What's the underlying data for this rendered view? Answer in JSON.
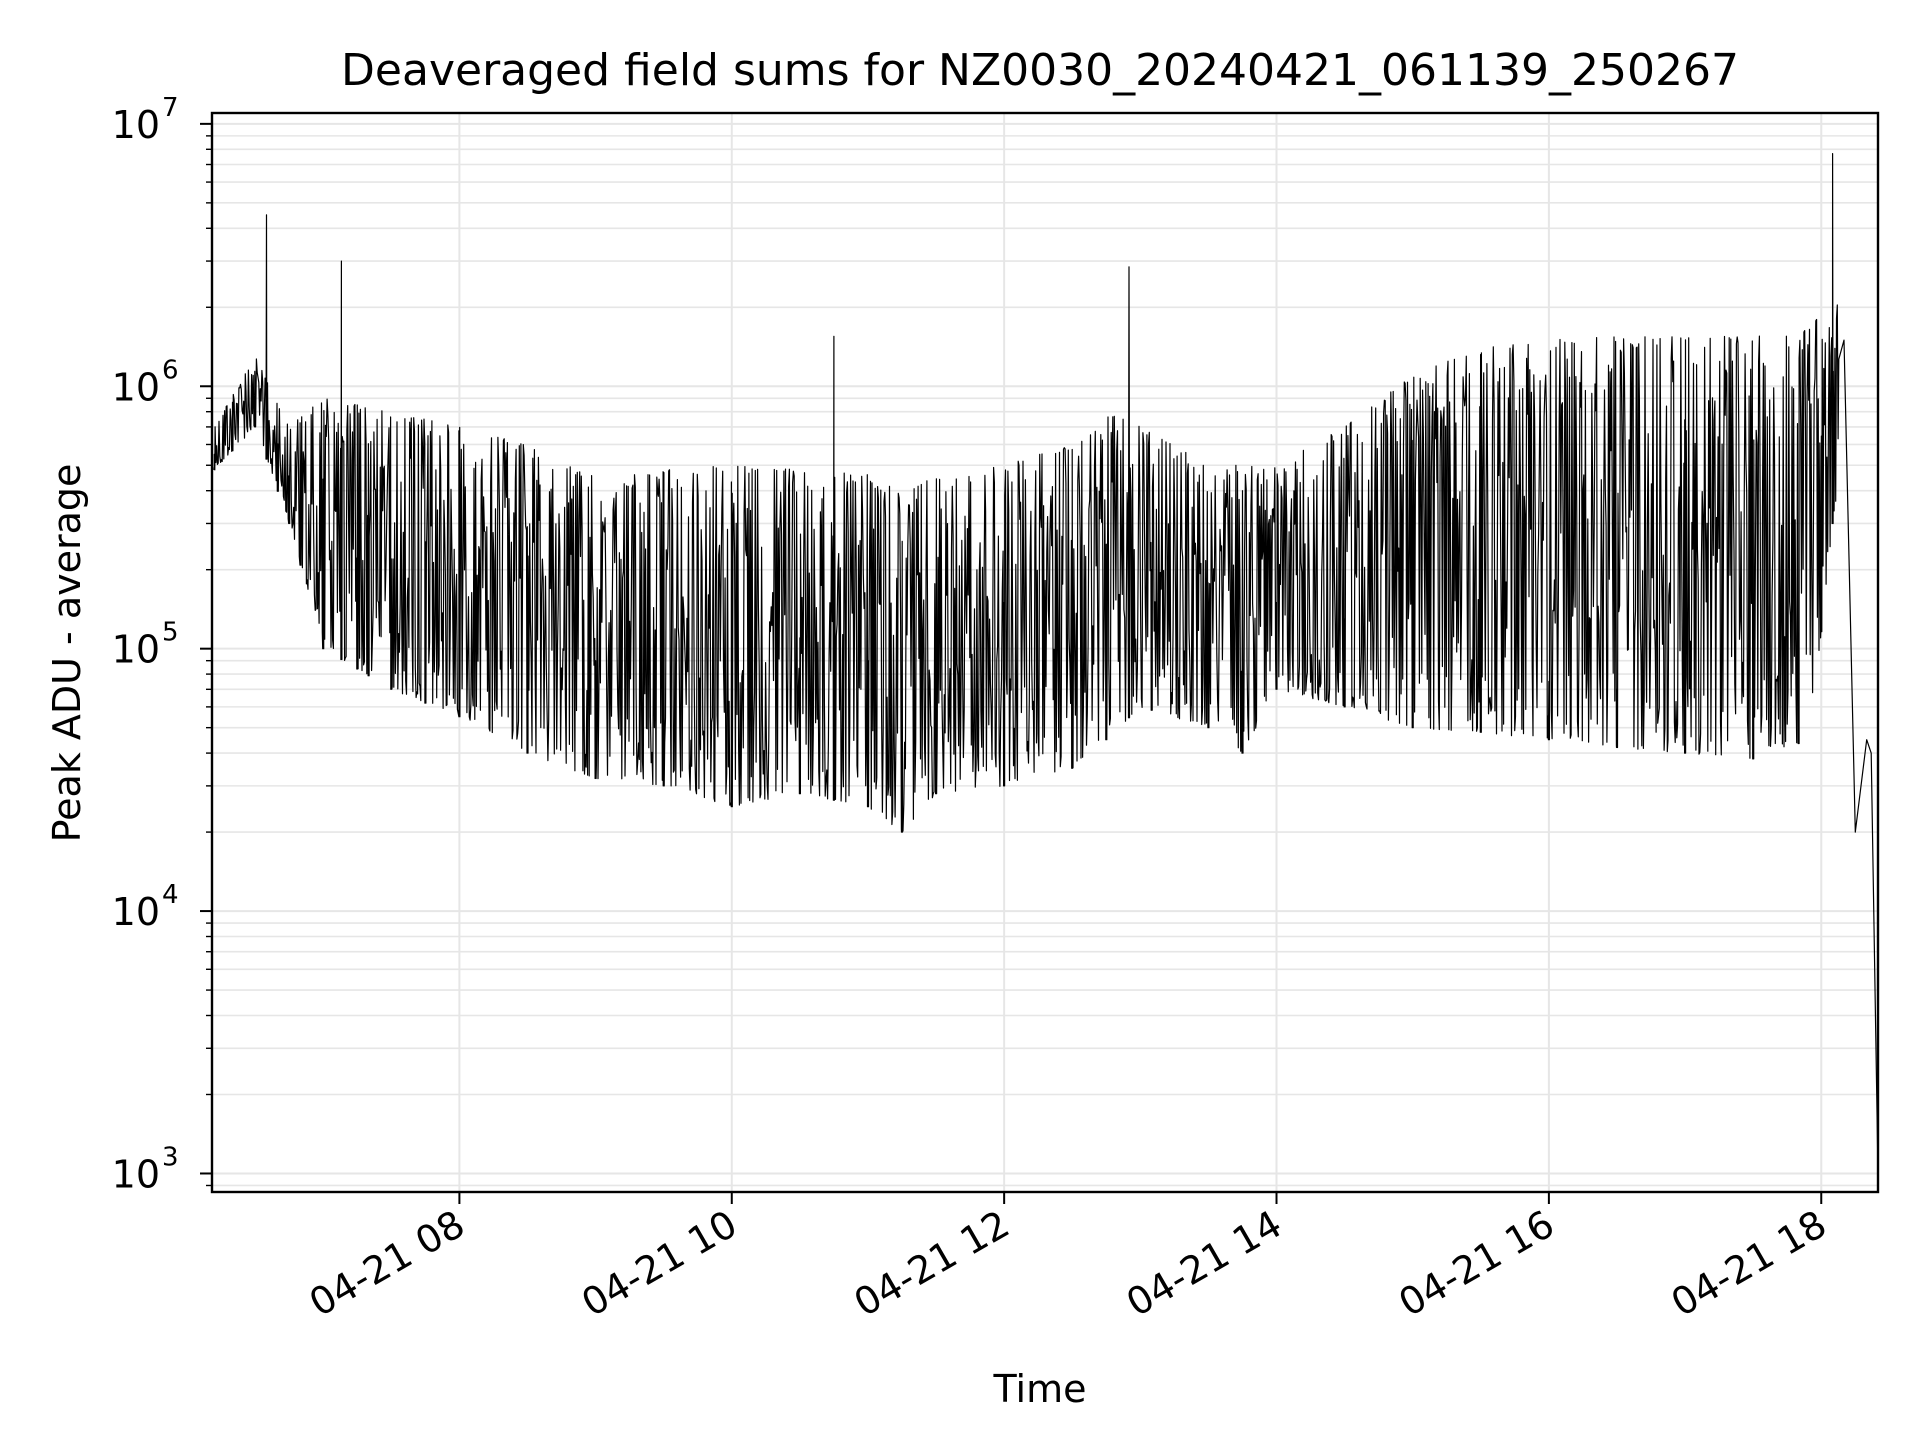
{
  "chart_data": {
    "type": "line",
    "title": "Deaveraged field sums for NZ0030_20240421_061139_250267",
    "xlabel": "Time",
    "ylabel": "Peak ADU - average",
    "yscale": "log",
    "ylim": [
      850,
      11000000
    ],
    "xlim": [
      "04-21 06:11",
      "04-21 18:25"
    ],
    "grid": true,
    "line_color": "#000000",
    "grid_color": "#e6e6e6",
    "x_ticks": [
      {
        "t": "04-21 08:00",
        "label": "04-21 08"
      },
      {
        "t": "04-21 10:00",
        "label": "04-21 10"
      },
      {
        "t": "04-21 12:00",
        "label": "04-21 12"
      },
      {
        "t": "04-21 14:00",
        "label": "04-21 14"
      },
      {
        "t": "04-21 16:00",
        "label": "04-21 16"
      },
      {
        "t": "04-21 18:00",
        "label": "04-21 18"
      }
    ],
    "y_ticks": [
      {
        "value": 1000,
        "base": "10",
        "exp": "3"
      },
      {
        "value": 10000,
        "base": "10",
        "exp": "4"
      },
      {
        "value": 100000,
        "base": "10",
        "exp": "5"
      },
      {
        "value": 1000000,
        "base": "10",
        "exp": "6"
      },
      {
        "value": 10000000,
        "base": "10",
        "exp": "7"
      }
    ],
    "series": [
      {
        "x": [
          "04-21 06:12",
          "04-21 06:20",
          "04-21 06:30",
          "04-21 06:35",
          "04-21 06:40",
          "04-21 06:45",
          "04-21 06:50",
          "04-21 07:00",
          "04-21 07:08",
          "04-21 07:15",
          "04-21 07:20",
          "04-21 07:30",
          "04-21 07:45",
          "04-21 08:00",
          "04-21 08:30",
          "04-21 09:00",
          "04-21 09:30",
          "04-21 10:00",
          "04-21 10:30",
          "04-21 10:45",
          "04-21 11:00",
          "04-21 11:15",
          "04-21 11:30",
          "04-21 12:00",
          "04-21 12:30",
          "04-21 12:45",
          "04-21 12:55",
          "04-21 13:05",
          "04-21 13:30",
          "04-21 13:45",
          "04-21 14:00",
          "04-21 14:30",
          "04-21 15:00",
          "04-21 15:30",
          "04-21 16:00",
          "04-21 16:30",
          "04-21 17:00",
          "04-21 17:30",
          "04-21 17:50",
          "04-21 18:00",
          "04-21 18:05",
          "04-21 18:10",
          "04-21 18:15",
          "04-21 18:20",
          "04-21 18:22",
          "04-21 18:25"
        ],
        "y": [
          550000,
          600000,
          1000000,
          4500000,
          600000,
          450000,
          350000,
          400000,
          3000000,
          350000,
          250000,
          220000,
          200000,
          180000,
          120000,
          90000,
          80000,
          70000,
          110000,
          1550000,
          90000,
          70000,
          110000,
          150000,
          200000,
          250000,
          2850000,
          200000,
          150000,
          400000,
          150000,
          130000,
          110000,
          100000,
          75000,
          70000,
          60000,
          55000,
          60000,
          380000,
          7700000,
          1500000,
          20000,
          45000,
          40000,
          1000
        ]
      }
    ],
    "envelope": {
      "x": [
        "04-21 06:12",
        "04-21 06:30",
        "04-21 06:45",
        "04-21 07:00",
        "04-21 07:30",
        "04-21 08:00",
        "04-21 08:30",
        "04-21 09:00",
        "04-21 09:30",
        "04-21 10:00",
        "04-21 10:30",
        "04-21 11:00",
        "04-21 11:15",
        "04-21 11:30",
        "04-21 12:00",
        "04-21 12:30",
        "04-21 12:45",
        "04-21 13:00",
        "04-21 13:30",
        "04-21 13:45",
        "04-21 14:00",
        "04-21 14:30",
        "04-21 15:00",
        "04-21 15:30",
        "04-21 16:00",
        "04-21 16:30",
        "04-21 17:00",
        "04-21 17:30",
        "04-21 17:55",
        "04-21 18:05"
      ],
      "low": [
        480000,
        700000,
        300000,
        100000,
        70000,
        55000,
        40000,
        32000,
        30000,
        25000,
        28000,
        25000,
        20000,
        28000,
        30000,
        35000,
        45000,
        60000,
        50000,
        40000,
        70000,
        60000,
        50000,
        48000,
        45000,
        42000,
        40000,
        38000,
        45000,
        300000
      ],
      "high": [
        700000,
        1300000,
        700000,
        900000,
        800000,
        700000,
        600000,
        450000,
        480000,
        500000,
        480000,
        460000,
        400000,
        450000,
        500000,
        600000,
        800000,
        700000,
        500000,
        500000,
        500000,
        700000,
        1100000,
        1400000,
        1500000,
        1550000,
        1550000,
        1550000,
        1650000,
        2200000
      ]
    }
  }
}
